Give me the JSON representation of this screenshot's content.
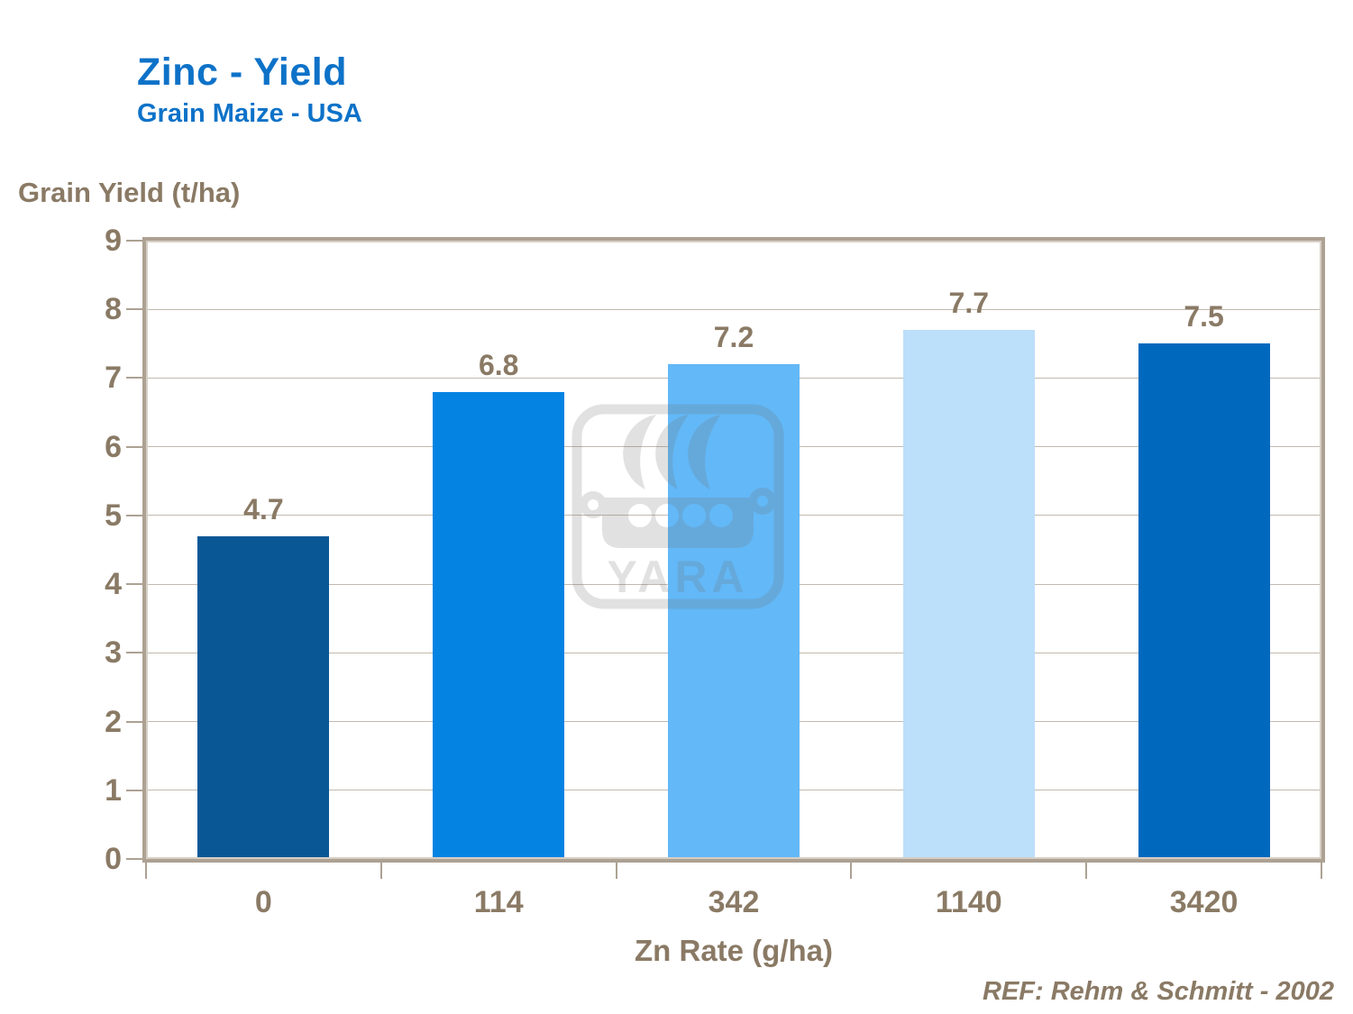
{
  "header": {
    "title": "Zinc - Yield",
    "subtitle": "Grain Maize - USA"
  },
  "footer": {
    "reference": "REF: Rehm & Schmitt - 2002"
  },
  "watermark": {
    "label": "YARA"
  },
  "colors": {
    "title_blue": "#0D72C8",
    "text_brown": "#8A7A65",
    "axis_tan": "#ADA193",
    "gridline": "#C2B9AE",
    "background": "#FFFFFF",
    "watermark_gray": "#6F6F6F"
  },
  "chart_data": {
    "type": "bar",
    "title": "Zinc - Yield",
    "subtitle": "Grain Maize - USA",
    "categories": [
      "0",
      "114",
      "342",
      "1140",
      "3420"
    ],
    "values": [
      4.7,
      6.8,
      7.2,
      7.7,
      7.5
    ],
    "value_labels": [
      "4.7",
      "6.8",
      "7.2",
      "7.7",
      "7.5"
    ],
    "bar_colors": [
      "#0A5796",
      "#0483E3",
      "#63B8F7",
      "#BCDFFA",
      "#0069BD"
    ],
    "xlabel": "Zn Rate (g/ha)",
    "ylabel": "Grain Yield (t/ha)",
    "ylim": [
      0,
      9
    ],
    "yticks": [
      0,
      1,
      2,
      3,
      4,
      5,
      6,
      7,
      8,
      9
    ],
    "grid": true,
    "legend_position": "none"
  }
}
